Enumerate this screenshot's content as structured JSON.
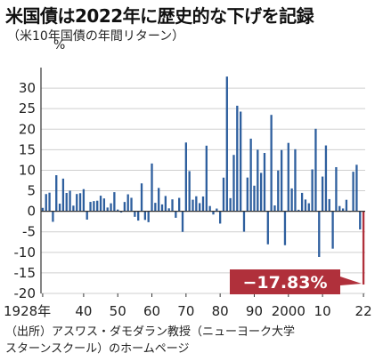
{
  "title": "米国債は2022年に歴史的な下げを記録",
  "subtitle": "（米10年国債の年間リターン）",
  "source": {
    "line1": "（出所）アスワス・ダモダラン教授（ニューヨーク大学",
    "line2": "スターンスクール）のホームページ"
  },
  "colors": {
    "bar": "#2e5f9e",
    "highlight": "#b0303b",
    "axis": "#333333",
    "grid": "#cfcfcf"
  },
  "chart_data": {
    "type": "bar",
    "title": "米国債は2022年に歴史的な下げを記録",
    "subtitle": "（米10年国債の年間リターン）",
    "ylabel": "%",
    "ylim": [
      -20,
      35
    ],
    "yticks": [
      -20,
      -15,
      -10,
      -5,
      0,
      5,
      10,
      15,
      20,
      25,
      30
    ],
    "xlim": [
      1927.5,
      2022.5
    ],
    "xticks": [
      {
        "year": 1928,
        "label": "1928年"
      },
      {
        "year": 1940,
        "label": "40"
      },
      {
        "year": 1950,
        "label": "50"
      },
      {
        "year": 1960,
        "label": "60"
      },
      {
        "year": 1970,
        "label": "70"
      },
      {
        "year": 1980,
        "label": "80"
      },
      {
        "year": 1990,
        "label": "90"
      },
      {
        "year": 2000,
        "label": "2000"
      },
      {
        "year": 2010,
        "label": "10"
      },
      {
        "year": 2022,
        "label": "22"
      }
    ],
    "grid": true,
    "annotation": {
      "year": 2022,
      "text": "−17.83%"
    },
    "x": [
      1928,
      1929,
      1930,
      1931,
      1932,
      1933,
      1934,
      1935,
      1936,
      1937,
      1938,
      1939,
      1940,
      1941,
      1942,
      1943,
      1944,
      1945,
      1946,
      1947,
      1948,
      1949,
      1950,
      1951,
      1952,
      1953,
      1954,
      1955,
      1956,
      1957,
      1958,
      1959,
      1960,
      1961,
      1962,
      1963,
      1964,
      1965,
      1966,
      1967,
      1968,
      1969,
      1970,
      1971,
      1972,
      1973,
      1974,
      1975,
      1976,
      1977,
      1978,
      1979,
      1980,
      1981,
      1982,
      1983,
      1984,
      1985,
      1986,
      1987,
      1988,
      1989,
      1990,
      1991,
      1992,
      1993,
      1994,
      1995,
      1996,
      1997,
      1998,
      1999,
      2000,
      2001,
      2002,
      2003,
      2004,
      2005,
      2006,
      2007,
      2008,
      2009,
      2010,
      2011,
      2012,
      2013,
      2014,
      2015,
      2016,
      2017,
      2018,
      2019,
      2020,
      2021,
      2022
    ],
    "values": [
      0.84,
      4.2,
      4.54,
      -2.56,
      8.79,
      1.86,
      7.96,
      4.47,
      5.02,
      1.38,
      4.21,
      4.41,
      5.4,
      -2.02,
      2.29,
      2.49,
      2.58,
      3.8,
      3.13,
      0.92,
      1.95,
      4.66,
      0.43,
      -0.3,
      2.27,
      4.14,
      3.29,
      -1.34,
      -2.26,
      6.8,
      -2.1,
      -2.65,
      11.64,
      2.06,
      5.69,
      1.68,
      3.73,
      0.72,
      2.91,
      -1.58,
      3.27,
      -5.01,
      16.75,
      9.79,
      2.82,
      3.66,
      1.99,
      3.61,
      15.98,
      1.29,
      -0.78,
      0.67,
      -2.99,
      8.2,
      32.81,
      3.2,
      13.73,
      25.71,
      24.28,
      -4.96,
      8.22,
      17.69,
      6.24,
      15.0,
      9.36,
      14.21,
      -8.04,
      23.48,
      1.43,
      9.94,
      14.92,
      -8.25,
      16.66,
      5.57,
      15.12,
      0.38,
      4.49,
      2.87,
      1.96,
      10.21,
      20.1,
      -11.12,
      8.46,
      16.04,
      2.97,
      -9.1,
      10.75,
      1.28,
      0.69,
      2.8,
      -0.02,
      9.64,
      11.33,
      -4.42,
      -17.83
    ]
  }
}
